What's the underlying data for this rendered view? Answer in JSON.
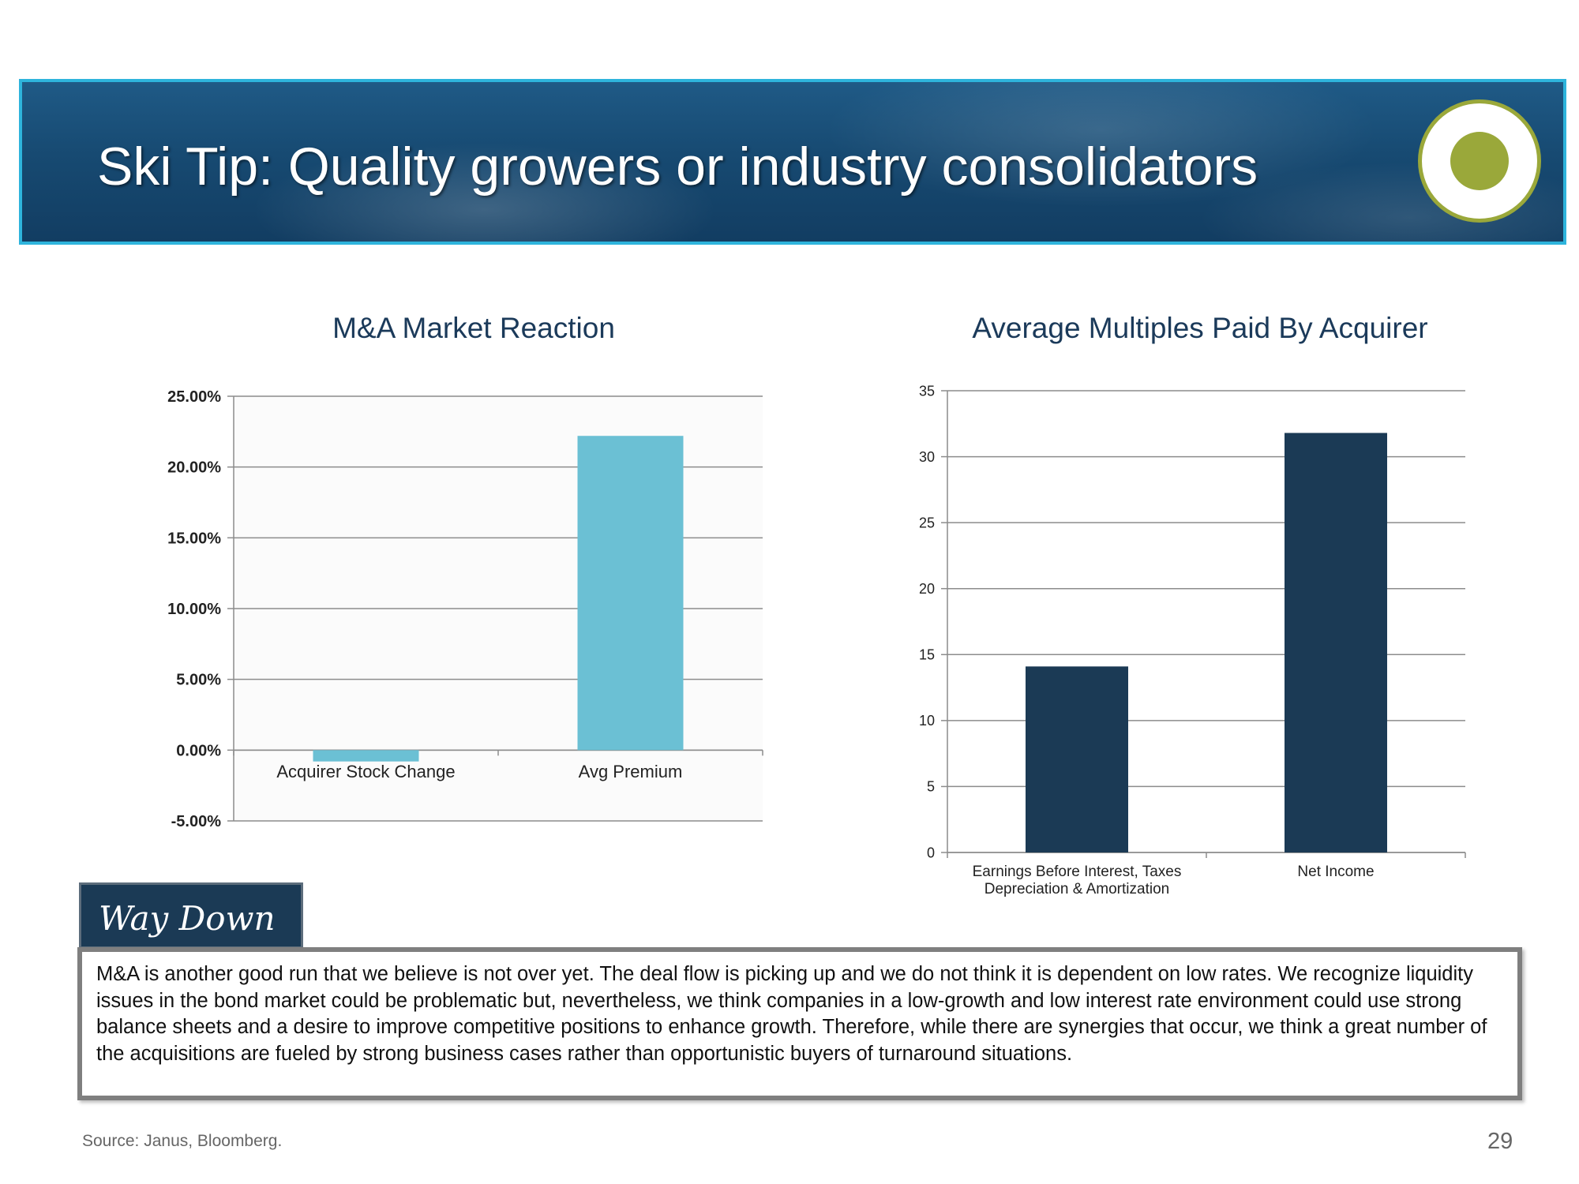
{
  "header": {
    "title": "Ski Tip: Quality growers or industry consolidators"
  },
  "chart_data": [
    {
      "type": "bar",
      "title": "M&A Market Reaction",
      "categories": [
        "Acquirer Stock Change",
        "Avg Premium"
      ],
      "values": [
        -0.8,
        22.2
      ],
      "ylim": [
        -5,
        25
      ],
      "yticks": [
        "25.00%",
        "20.00%",
        "15.00%",
        "10.00%",
        "5.00%",
        "0.00%",
        "-5.00%"
      ],
      "xlabel": "",
      "ylabel": "",
      "grid": true,
      "color": "#6bc0d4"
    },
    {
      "type": "bar",
      "title": "Average Multiples Paid By Acquirer",
      "categories": [
        "Earnings Before Interest, Taxes Depreciation & Amortization",
        "Net Income"
      ],
      "category_lines": [
        [
          "Earnings Before Interest, Taxes",
          "Depreciation & Amortization"
        ],
        [
          "Net Income"
        ]
      ],
      "values": [
        14.1,
        31.8
      ],
      "ylim": [
        0,
        35
      ],
      "yticks": [
        "35",
        "30",
        "25",
        "20",
        "15",
        "10",
        "5",
        "0"
      ],
      "xlabel": "",
      "ylabel": "",
      "grid": true,
      "color": "#1b3a55"
    }
  ],
  "callout": {
    "label": "Way Down",
    "text": "M&A is another good run that we believe is not over yet. The deal flow is picking up and we do not think it is dependent on low rates. We recognize liquidity issues in the bond market could be problematic but, nevertheless, we think companies in a low-growth and low interest rate environment could use strong balance sheets and a desire to improve competitive positions to enhance growth. Therefore, while there are synergies that occur, we think a great number of the acquisitions are fueled by strong business cases rather than opportunistic buyers of turnaround situations."
  },
  "footer": {
    "source": "Source: Janus, Bloomberg.",
    "page": "29"
  }
}
